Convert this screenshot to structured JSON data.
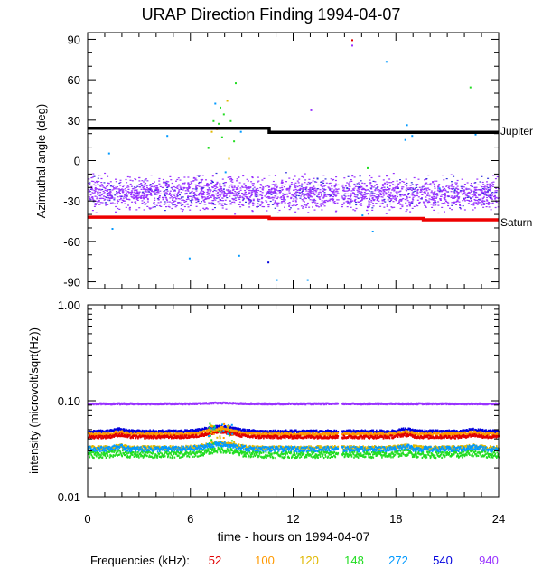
{
  "title": "URAP Direction Finding  1994-04-07",
  "xlabel": "time - hours on 1994-04-07",
  "freq_label": "Frequencies (kHz):",
  "frequencies": [
    {
      "label": "52",
      "color": "#e00000"
    },
    {
      "label": "100",
      "color": "#ff9900"
    },
    {
      "label": "120",
      "color": "#e0b800"
    },
    {
      "label": "148",
      "color": "#22dd22"
    },
    {
      "label": "272",
      "color": "#0099ff"
    },
    {
      "label": "540",
      "color": "#0000dd"
    },
    {
      "label": "940",
      "color": "#9933ff"
    }
  ],
  "chart_data": [
    {
      "type": "scatter",
      "ylabel": "Azimuthal angle (deg)",
      "xlim": [
        0,
        24
      ],
      "ylim": [
        -95,
        95
      ],
      "xticks": [
        "0",
        "6",
        "12",
        "18",
        "24"
      ],
      "yticks": [
        "90",
        "60",
        "30",
        "0",
        "-30",
        "-60",
        "-90"
      ],
      "jupiter": {
        "name": "Jupiter",
        "color": "#000000",
        "x": [
          0,
          10.6,
          10.6,
          24
        ],
        "y": [
          24,
          24,
          21,
          21
        ]
      },
      "saturn": {
        "name": "Saturn",
        "color": "#ee0000",
        "x": [
          0,
          10.6,
          10.6,
          19.6,
          19.6,
          24
        ],
        "y": [
          -42,
          -42,
          -43,
          -43,
          -44,
          -44
        ]
      },
      "band": {
        "color": "#9933ff",
        "center": -24,
        "spread": 8,
        "gap": [
          14.6,
          14.8
        ]
      },
      "scatter_points": [
        {
          "x": 7.3,
          "y": 30,
          "c": "#22dd22"
        },
        {
          "x": 7.5,
          "y": 24,
          "c": "#ff9900"
        },
        {
          "x": 7.6,
          "y": 28,
          "c": "#22dd22"
        },
        {
          "x": 7.9,
          "y": 35,
          "c": "#22dd22"
        },
        {
          "x": 7.2,
          "y": 22,
          "c": "#e0b800"
        },
        {
          "x": 7.8,
          "y": 18,
          "c": "#22dd22"
        },
        {
          "x": 8.1,
          "y": 45,
          "c": "#e0b800"
        },
        {
          "x": 8.6,
          "y": 58,
          "c": "#22dd22"
        },
        {
          "x": 8.3,
          "y": 30,
          "c": "#22dd22"
        },
        {
          "x": 7.0,
          "y": 10,
          "c": "#22dd22"
        },
        {
          "x": 7.7,
          "y": 40,
          "c": "#22dd22"
        },
        {
          "x": 8.9,
          "y": 22,
          "c": "#0099ff"
        },
        {
          "x": 7.4,
          "y": 43,
          "c": "#0099ff"
        },
        {
          "x": 8.5,
          "y": 15,
          "c": "#22dd22"
        },
        {
          "x": 1.2,
          "y": 6,
          "c": "#0099ff"
        },
        {
          "x": 4.6,
          "y": 19,
          "c": "#0099ff"
        },
        {
          "x": 1.4,
          "y": -50,
          "c": "#0099ff"
        },
        {
          "x": 5.9,
          "y": -72,
          "c": "#0099ff"
        },
        {
          "x": 8.8,
          "y": -70,
          "c": "#0099ff"
        },
        {
          "x": 10.5,
          "y": -75,
          "c": "#0000dd"
        },
        {
          "x": 13.0,
          "y": 38,
          "c": "#9933ff"
        },
        {
          "x": 12.8,
          "y": -88,
          "c": "#0099ff"
        },
        {
          "x": 15.4,
          "y": 86,
          "c": "#9933ff"
        },
        {
          "x": 15.4,
          "y": 90,
          "c": "#e00000"
        },
        {
          "x": 17.4,
          "y": 74,
          "c": "#0099ff"
        },
        {
          "x": 16.3,
          "y": -5,
          "c": "#22dd22"
        },
        {
          "x": 18.6,
          "y": 27,
          "c": "#0099ff"
        },
        {
          "x": 18.5,
          "y": 16,
          "c": "#0099ff"
        },
        {
          "x": 18.9,
          "y": 19,
          "c": "#0099ff"
        },
        {
          "x": 22.3,
          "y": 55,
          "c": "#22dd22"
        },
        {
          "x": 22.6,
          "y": 20,
          "c": "#0099ff"
        },
        {
          "x": 16.6,
          "y": -52,
          "c": "#0099ff"
        },
        {
          "x": 18.9,
          "y": -42,
          "c": "#0099ff"
        },
        {
          "x": 16.0,
          "y": -40,
          "c": "#0099ff"
        },
        {
          "x": 8.2,
          "y": 2,
          "c": "#e0b800"
        },
        {
          "x": 8.0,
          "y": -8,
          "c": "#0099ff"
        },
        {
          "x": 11.0,
          "y": -88,
          "c": "#0099ff"
        },
        {
          "x": 20.5,
          "y": -20,
          "c": "#0099ff"
        }
      ]
    },
    {
      "type": "line",
      "ylabel": "intensity (microvolt/sqrt(Hz))",
      "xlim": [
        0,
        24
      ],
      "ylim": [
        0.01,
        1.0
      ],
      "yscale": "log",
      "xticks": [
        "0",
        "6",
        "12",
        "18",
        "24"
      ],
      "yticks": [
        "1.00",
        "0.10",
        "0.01"
      ],
      "gap": [
        14.6,
        14.8
      ],
      "series": [
        {
          "freq": "940",
          "color": "#9933ff",
          "base": 0.095,
          "noise": 0.004
        },
        {
          "freq": "540",
          "color": "#0000dd",
          "base": 0.049,
          "noise": 0.003
        },
        {
          "freq": "100",
          "color": "#ff9900",
          "base": 0.046,
          "noise": 0.003
        },
        {
          "freq": "52",
          "color": "#e00000",
          "base": 0.043,
          "noise": 0.003
        },
        {
          "freq": "120",
          "color": "#e0b800",
          "base": 0.033,
          "noise": 0.003
        },
        {
          "freq": "272",
          "color": "#0099ff",
          "base": 0.032,
          "noise": 0.004
        },
        {
          "freq": "148",
          "color": "#22dd22",
          "base": 0.028,
          "noise": 0.004
        }
      ]
    }
  ]
}
